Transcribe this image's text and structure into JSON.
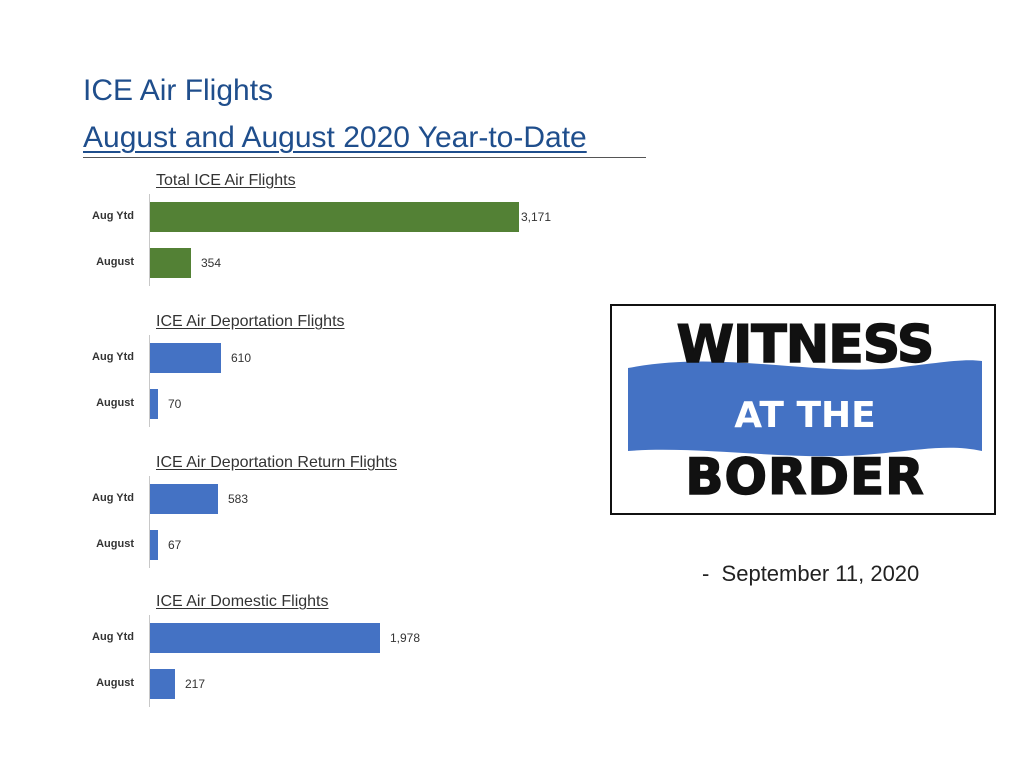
{
  "header": {
    "title_line1": "ICE Air Flights",
    "title_line2": "August and August 2020 Year-to-Date"
  },
  "chart_data": [
    {
      "type": "bar",
      "orientation": "horizontal",
      "title": "Total ICE Air Flights",
      "categories": [
        "Aug Ytd",
        "August"
      ],
      "values": [
        3171,
        354
      ],
      "value_labels": [
        "3,171",
        "354"
      ],
      "color": "#538135",
      "xlim": [
        0,
        3171
      ]
    },
    {
      "type": "bar",
      "orientation": "horizontal",
      "title": "ICE Air Deportation Flights",
      "categories": [
        "Aug Ytd",
        "August"
      ],
      "values": [
        610,
        70
      ],
      "value_labels": [
        "610",
        "70"
      ],
      "color": "#4472c4",
      "xlim": [
        0,
        3171
      ]
    },
    {
      "type": "bar",
      "orientation": "horizontal",
      "title": "ICE Air Deportation Return Flights",
      "categories": [
        "Aug Ytd",
        "August"
      ],
      "values": [
        583,
        67
      ],
      "value_labels": [
        "583",
        "67"
      ],
      "color": "#4472c4",
      "xlim": [
        0,
        3171
      ]
    },
    {
      "type": "bar",
      "orientation": "horizontal",
      "title": "ICE Air Domestic Flights",
      "categories": [
        "Aug Ytd",
        "August"
      ],
      "values": [
        1978,
        217
      ],
      "value_labels": [
        "1,978",
        "217"
      ],
      "color": "#4472c4",
      "xlim": [
        0,
        3171
      ]
    }
  ],
  "logo": {
    "line1": "WITNESS",
    "line2": "AT THE",
    "line3": "BORDER",
    "banner_color": "#4472c4"
  },
  "date": "-  September 11, 2020"
}
